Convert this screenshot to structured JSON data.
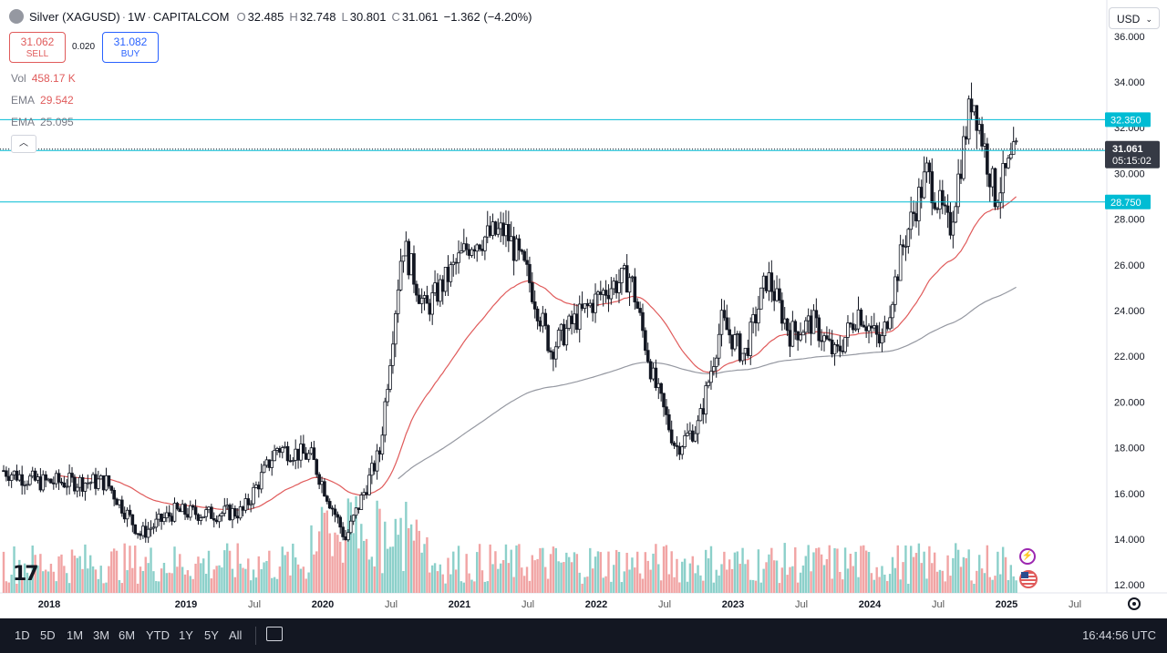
{
  "symbol": {
    "name": "Silver (XAGUSD)",
    "sep1": "·",
    "interval": "1W",
    "sep2": "·",
    "exchange": "CAPITALCOM",
    "o_label": "O",
    "o": "32.485",
    "h_label": "H",
    "h": "32.748",
    "l_label": "L",
    "l": "30.801",
    "c_label": "C",
    "c": "31.061",
    "change": "−1.362 (−4.20%)"
  },
  "trade": {
    "sell_price": "31.062",
    "sell_label": "SELL",
    "spread": "0.020",
    "buy_price": "31.082",
    "buy_label": "BUY"
  },
  "indicators": [
    {
      "name": "Vol",
      "value": "458.17 K",
      "color": "#e05b5b"
    },
    {
      "name": "EMA",
      "value": "29.542",
      "color": "#e05b5b"
    },
    {
      "name": "EMA",
      "value": "25.095",
      "color": "#787b86"
    }
  ],
  "currency": "USD",
  "price_axis": {
    "ticks": [
      "36.000",
      "34.000",
      "32.000",
      "30.000",
      "28.000",
      "26.000",
      "24.000",
      "22.000",
      "20.000",
      "18.000",
      "16.000",
      "14.000",
      "12.000"
    ],
    "levels": [
      {
        "label": "32.350",
        "value": 32.35
      },
      {
        "label": "31.000",
        "value": 31.0
      },
      {
        "label": "28.750",
        "value": 28.75
      }
    ],
    "last_price": "31.061",
    "countdown": "05:15:02"
  },
  "time_axis": {
    "ticks": [
      "2018",
      "2019",
      "Jul",
      "2020",
      "Jul",
      "2021",
      "Jul",
      "2022",
      "Jul",
      "2023",
      "Jul",
      "2024",
      "Jul",
      "2025",
      "Jul"
    ],
    "bold": [
      "2018",
      "2019",
      "2020",
      "2021",
      "2022",
      "2023",
      "2024",
      "2025"
    ]
  },
  "bottom_bar": {
    "timeframes": [
      "1D",
      "5D",
      "1M",
      "3M",
      "6M",
      "YTD",
      "1Y",
      "5Y",
      "All"
    ],
    "clock": "16:44:56 UTC"
  },
  "logo_text": "17",
  "colors": {
    "up": "#131722",
    "down": "#131722",
    "ema_fast": "#e05b5b",
    "ema_slow": "#9598a1",
    "level_line": "#00bcd4",
    "level_label_bg": "#00bcd4",
    "last_price_bg": "#363a45",
    "vol_up": "#80cbc4",
    "vol_down": "#ef9a9a"
  },
  "chart_data": {
    "type": "candlestick",
    "y_scale": "linear",
    "ylim": [
      11.8,
      36.2
    ],
    "xlim": [
      "2017-09",
      "2025-09"
    ],
    "series": [
      {
        "name": "Silver (XAGUSD)",
        "kind": "weekly-close-approx",
        "points": [
          [
            "2017-09",
            17.0
          ],
          [
            "2017-12",
            16.5
          ],
          [
            "2018-03",
            16.5
          ],
          [
            "2018-06",
            16.5
          ],
          [
            "2018-09",
            14.2
          ],
          [
            "2018-12",
            15.2
          ],
          [
            "2019-03",
            15.1
          ],
          [
            "2019-06",
            15.2
          ],
          [
            "2019-09",
            18.0
          ],
          [
            "2019-12",
            17.6
          ],
          [
            "2020-03",
            14.0
          ],
          [
            "2020-06",
            17.8
          ],
          [
            "2020-08",
            27.0
          ],
          [
            "2020-10",
            24.0
          ],
          [
            "2020-12",
            25.5
          ],
          [
            "2021-02",
            27.0
          ],
          [
            "2021-05",
            27.5
          ],
          [
            "2021-07",
            25.5
          ],
          [
            "2021-09",
            22.3
          ],
          [
            "2021-11",
            23.5
          ],
          [
            "2022-02",
            25.0
          ],
          [
            "2022-04",
            25.5
          ],
          [
            "2022-06",
            21.0
          ],
          [
            "2022-08",
            18.0
          ],
          [
            "2022-10",
            19.0
          ],
          [
            "2022-12",
            23.5
          ],
          [
            "2023-02",
            22.0
          ],
          [
            "2023-04",
            25.5
          ],
          [
            "2023-06",
            23.0
          ],
          [
            "2023-08",
            23.5
          ],
          [
            "2023-10",
            22.0
          ],
          [
            "2023-12",
            24.0
          ],
          [
            "2024-02",
            22.5
          ],
          [
            "2024-04",
            27.0
          ],
          [
            "2024-06",
            30.0
          ],
          [
            "2024-08",
            27.5
          ],
          [
            "2024-10",
            33.5
          ],
          [
            "2024-12",
            29.0
          ],
          [
            "2025-02",
            31.061
          ]
        ]
      },
      {
        "name": "EMA",
        "value": 29.542
      },
      {
        "name": "EMA",
        "value": 25.095
      }
    ]
  }
}
